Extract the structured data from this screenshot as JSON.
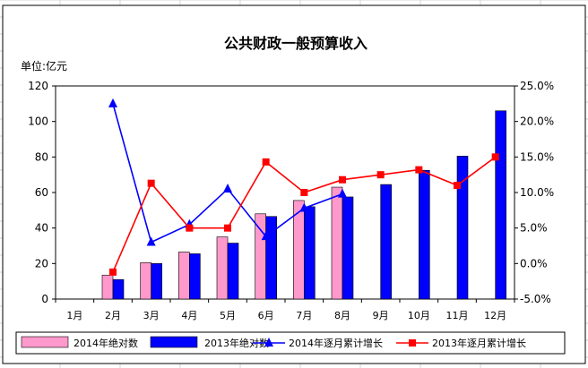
{
  "chart_data": {
    "type": "bar",
    "title": "公共财政一般预算收入",
    "unit_label": "单位:亿元",
    "categories": [
      "1月",
      "2月",
      "3月",
      "4月",
      "5月",
      "6月",
      "7月",
      "8月",
      "9月",
      "10月",
      "11月",
      "12月"
    ],
    "y_left_ticks": [
      "0",
      "20",
      "40",
      "60",
      "80",
      "100",
      "120"
    ],
    "y_right_ticks": [
      "-5.0%",
      "0.0%",
      "5.0%",
      "10.0%",
      "15.0%",
      "20.0%",
      "25.0%"
    ],
    "ylim_left": [
      0,
      120
    ],
    "ylim_right": [
      -5,
      25
    ],
    "grid": false,
    "legend_position": "bottom",
    "series": [
      {
        "name": "2014年绝对数",
        "type": "bar",
        "axis": "left",
        "color": "#ff99cc",
        "values": [
          null,
          13.5,
          20.5,
          26.5,
          35,
          48,
          55.5,
          63,
          null,
          null,
          null,
          null
        ]
      },
      {
        "name": "2013年绝对数",
        "type": "bar",
        "axis": "left",
        "color": "#0000ff",
        "values": [
          null,
          11,
          20,
          25.5,
          31.5,
          46.5,
          52,
          57.5,
          64.5,
          72.5,
          80.5,
          106
        ]
      },
      {
        "name": "2014年逐月累计增长",
        "type": "line",
        "axis": "right",
        "color": "#0000ff",
        "marker": "triangle",
        "values": [
          null,
          22.5,
          3.0,
          5.5,
          10.5,
          3.8,
          7.8,
          9.8,
          null,
          null,
          null,
          null
        ]
      },
      {
        "name": "2013年逐月累计增长",
        "type": "line",
        "axis": "right",
        "color": "#ff0000",
        "marker": "square",
        "values": [
          null,
          -1.2,
          11.3,
          5.0,
          5.0,
          14.3,
          10.0,
          11.8,
          12.5,
          13.2,
          11.0,
          15.0
        ]
      }
    ]
  }
}
